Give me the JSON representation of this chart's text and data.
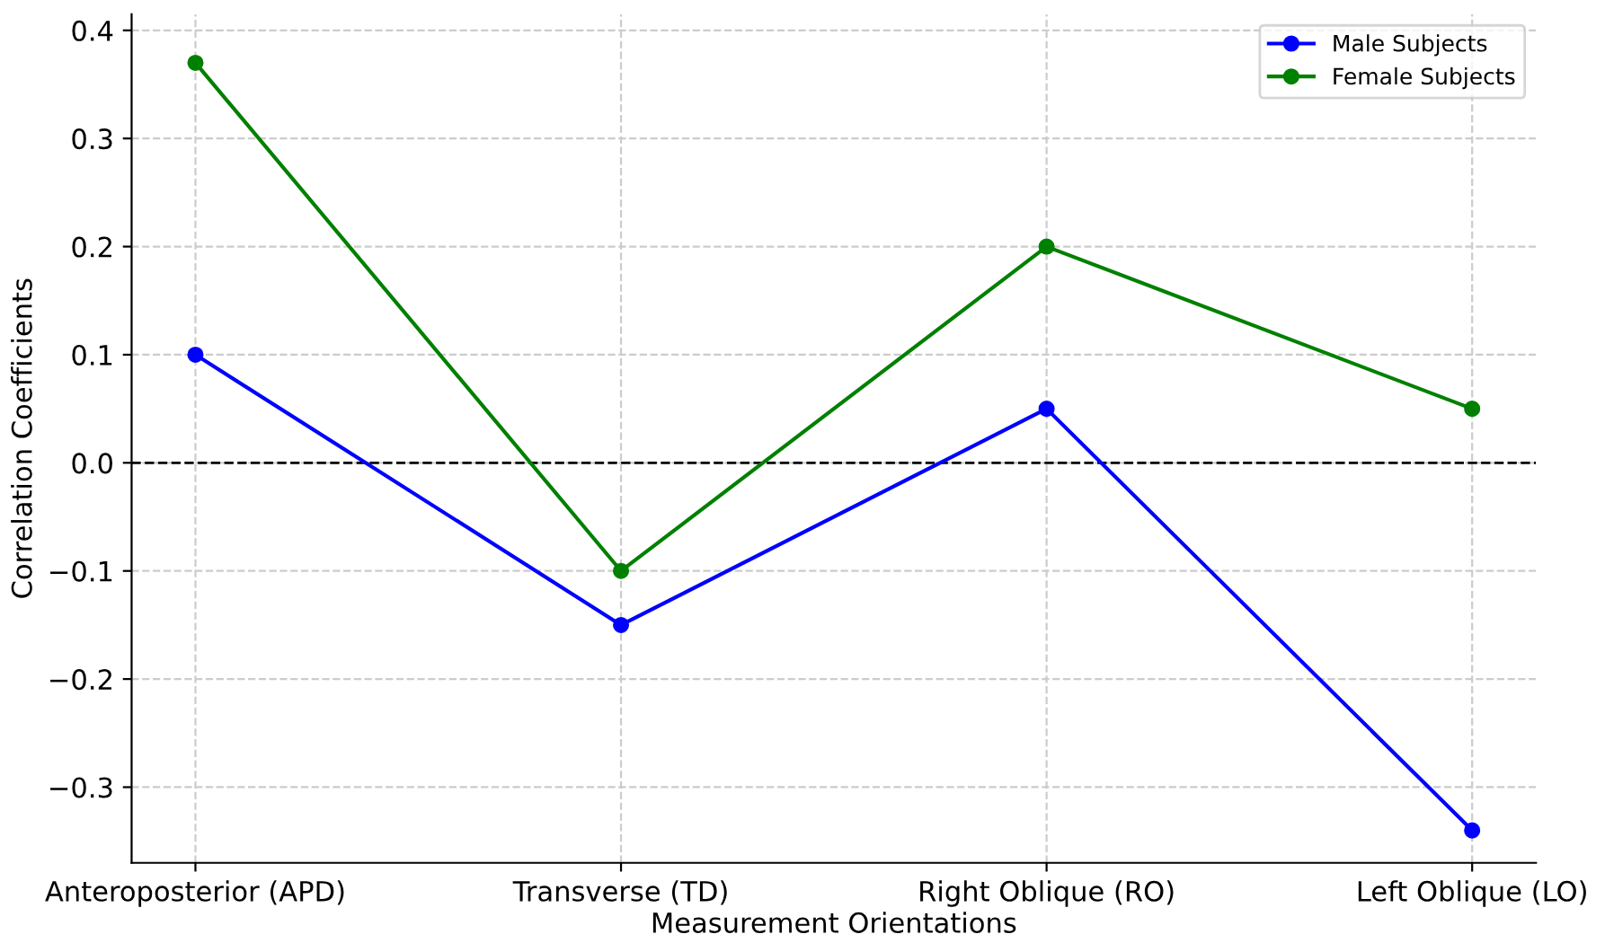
{
  "chart_data": {
    "type": "line",
    "xlabel": "Measurement Orientations",
    "ylabel": "Correlation Coefficients",
    "categories": [
      "Anteroposterior (APD)",
      "Transverse (TD)",
      "Right Oblique (RO)",
      "Left Oblique (LO)"
    ],
    "series": [
      {
        "name": "Male Subjects",
        "color": "#0000ff",
        "values": [
          0.1,
          -0.15,
          0.05,
          -0.34
        ]
      },
      {
        "name": "Female Subjects",
        "color": "#008000",
        "values": [
          0.37,
          -0.1,
          0.2,
          0.05
        ]
      }
    ],
    "ylim": [
      -0.37,
      0.415
    ],
    "yticks": [
      -0.3,
      -0.2,
      -0.1,
      {
        "value": 0,
        "label": "0.0"
      },
      0.1,
      0.2,
      0.3,
      0.4
    ],
    "ref_lines": [
      {
        "axis": "y",
        "value": 0,
        "color": "#000000",
        "line_style": "dashed"
      }
    ],
    "grid": true,
    "legend": "top right",
    "marker": "circle",
    "line_style": "solid"
  }
}
